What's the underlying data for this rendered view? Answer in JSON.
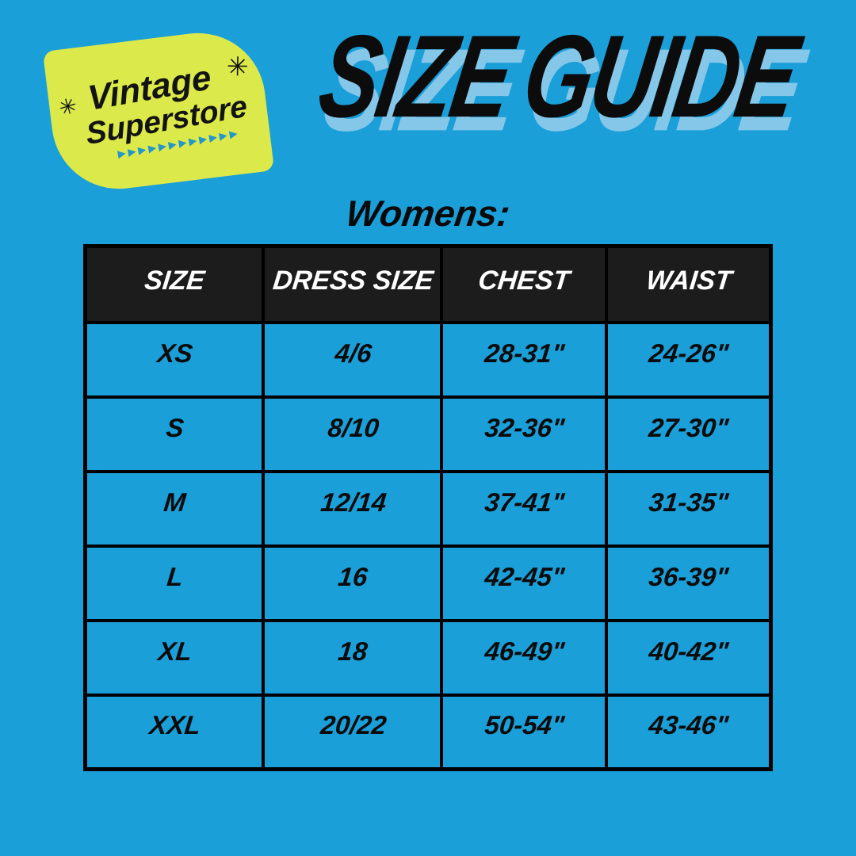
{
  "page": {
    "background_color": "#1B9FD9"
  },
  "logo": {
    "line1": "Vintage",
    "line2": "Superstore",
    "sparkle_glyph": "✳",
    "arrows_glyph": "▶▶▶▶▶▶▶▶▶▶▶▶",
    "badge_color": "#DCE94A",
    "text_color": "#131313",
    "arrow_color": "#2496C9"
  },
  "title": {
    "text": "SIZE GUIDE",
    "color": "#0C0C0C",
    "shadow_color": "#85C7E9"
  },
  "section_label": "Womens:",
  "size_table": {
    "border_color": "#000000",
    "header_background": "#1C1C1C",
    "header_text_color": "#FFFFFF",
    "cell_text_color": "#0B0B0B",
    "columns": [
      "SIZE",
      "DRESS SIZE",
      "CHEST",
      "WAIST"
    ],
    "rows": [
      [
        "XS",
        "4/6",
        "28-31\"",
        "24-26\""
      ],
      [
        "S",
        "8/10",
        "32-36\"",
        "27-30\""
      ],
      [
        "M",
        "12/14",
        "37-41\"",
        "31-35\""
      ],
      [
        "L",
        "16",
        "42-45\"",
        "36-39\""
      ],
      [
        "XL",
        "18",
        "46-49\"",
        "40-42\""
      ],
      [
        "XXL",
        "20/22",
        "50-54\"",
        "43-46\""
      ]
    ]
  }
}
